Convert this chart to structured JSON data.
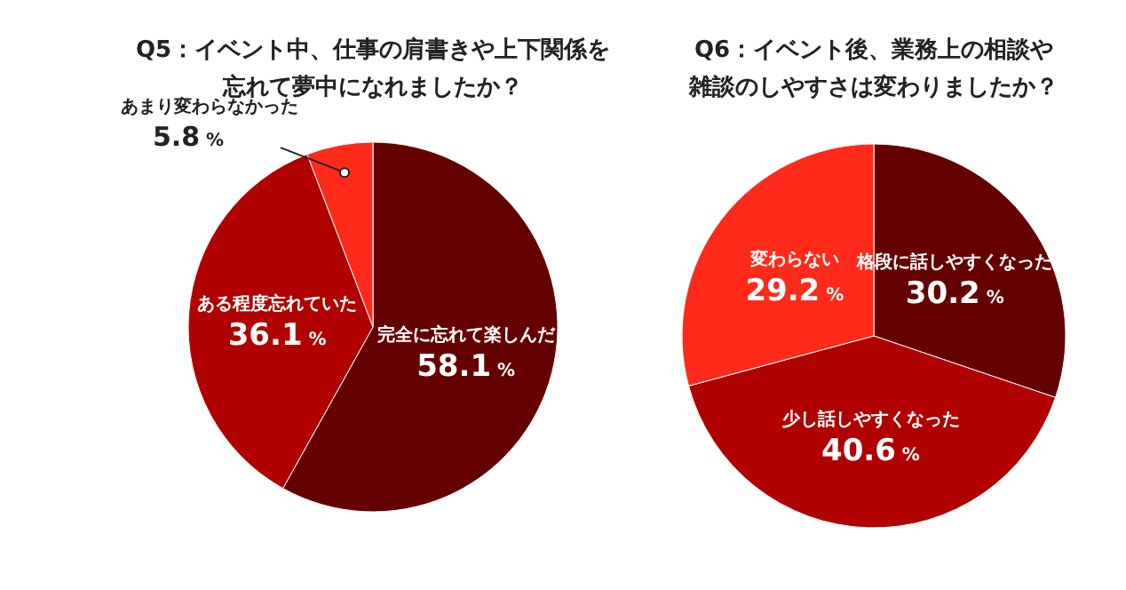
{
  "chart_data": [
    {
      "type": "pie",
      "title": "Q5：イベント中、仕事の肩書きや上下関係を忘れて夢中になれましたか？",
      "categories": [
        "完全に忘れて楽しんだ",
        "ある程度忘れていた",
        "あまり変わらなかった"
      ],
      "values": [
        58.1,
        36.1,
        5.8
      ],
      "colors": [
        "#650000",
        "#b00000",
        "#ff2a1a"
      ],
      "value_labels": [
        "58.1 %",
        "36.1 %",
        "5.8 %"
      ]
    },
    {
      "type": "pie",
      "title": "Q6：イベント後、業務上の相談や雑談のしやすさは変わりましたか？",
      "categories": [
        "格段に話しやすくなった",
        "少し話しやすくなった",
        "変わらない"
      ],
      "values": [
        30.2,
        40.6,
        29.2
      ],
      "colors": [
        "#650000",
        "#b00000",
        "#ff2a1a"
      ],
      "value_labels": [
        "30.2 %",
        "40.6 %",
        "29.2 %"
      ]
    }
  ]
}
